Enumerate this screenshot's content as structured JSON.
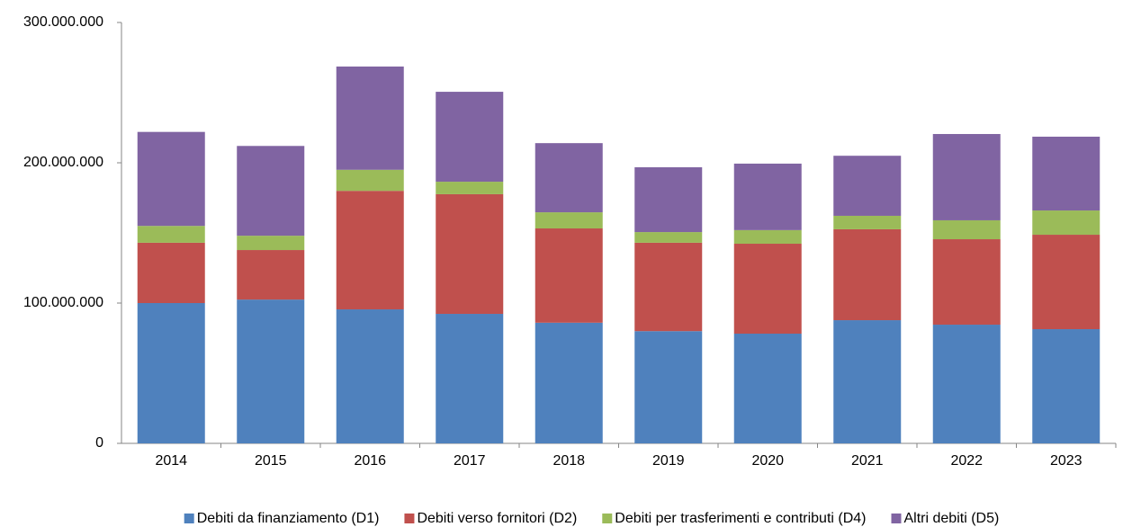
{
  "chart_data": {
    "type": "stacked_bar",
    "categories": [
      "2014",
      "2015",
      "2016",
      "2017",
      "2018",
      "2019",
      "2020",
      "2021",
      "2022",
      "2023"
    ],
    "series": [
      {
        "name": "Debiti da finanziamento (D1)",
        "color": "#4f81bd",
        "values": [
          100000000,
          102500000,
          95500000,
          92300000,
          86000000,
          80000000,
          78200000,
          87800000,
          84600000,
          81400000
        ]
      },
      {
        "name": "Debiti verso fornitori (D2)",
        "color": "#c0504d",
        "values": [
          43000000,
          35300000,
          84500000,
          85300000,
          67200000,
          63000000,
          64100000,
          64800000,
          60900000,
          67300000
        ]
      },
      {
        "name": "Debiti per trasferimenti e contributi (D4)",
        "color": "#9bbb59",
        "values": [
          12000000,
          10200000,
          15000000,
          8900000,
          11500000,
          7600000,
          9700000,
          9600000,
          13500000,
          17300000
        ]
      },
      {
        "name": "Altri debiti (D5)",
        "color": "#8064a2",
        "values": [
          67000000,
          64000000,
          73600000,
          64100000,
          49300000,
          46200000,
          47400000,
          42800000,
          61500000,
          52600000
        ]
      }
    ],
    "ylim": [
      0,
      300000000
    ],
    "yticks": [
      0,
      {
        "value": 100000000,
        "label": "100.000.000"
      },
      {
        "value": 200000000,
        "label": "200.000.000"
      },
      {
        "value": 300000000,
        "label": "300.000.000"
      }
    ],
    "grid": false,
    "legend": "bottom"
  }
}
